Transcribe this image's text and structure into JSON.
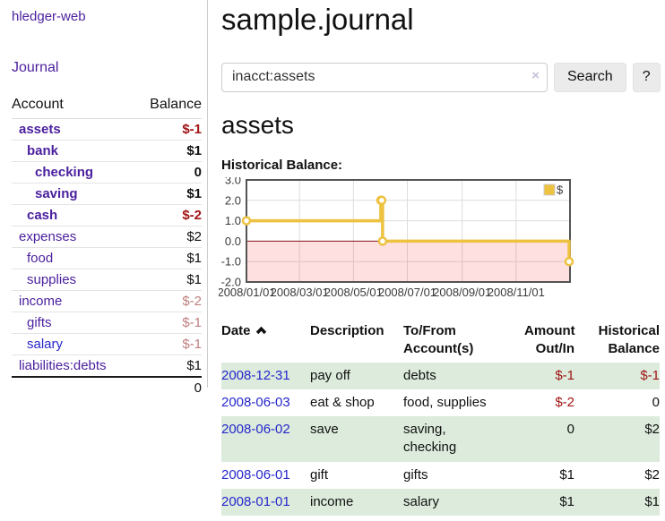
{
  "colors": {
    "link_purple": "#4a1f9e",
    "link_blue": "#2727cc",
    "negative_dark": "#a01414",
    "negative_rosy": "#bf7e7e",
    "row_green": "#dcebdc",
    "zero_line": "#8b1a1a",
    "negative_fill": "rgba(255,0,0,0.12)",
    "grid_line": "#dddddd",
    "plot_border": "#545454",
    "tick_label": "#3a3a3a"
  },
  "sidebar": {
    "brand": "hledger-web",
    "journal_label": "Journal",
    "table": {
      "account_header": "Account",
      "balance_header": "Balance",
      "rows": [
        {
          "name": "assets",
          "depth": 1,
          "bold": true,
          "balance": "$-1",
          "neg": "dark"
        },
        {
          "name": "bank",
          "depth": 2,
          "bold": true,
          "balance": "$1"
        },
        {
          "name": "checking",
          "depth": 3,
          "bold": true,
          "balance": "0"
        },
        {
          "name": "saving",
          "depth": 3,
          "bold": true,
          "balance": "$1"
        },
        {
          "name": "cash",
          "depth": 2,
          "bold": true,
          "balance": "$-2",
          "neg": "dark"
        },
        {
          "name": "expenses",
          "depth": 1,
          "bold": false,
          "balance": "$2"
        },
        {
          "name": "food",
          "depth": 2,
          "bold": false,
          "balance": "$1"
        },
        {
          "name": "supplies",
          "depth": 2,
          "bold": false,
          "balance": "$1"
        },
        {
          "name": "income",
          "depth": 1,
          "bold": false,
          "balance": "$-2",
          "neg": "rosy"
        },
        {
          "name": "gifts",
          "depth": 2,
          "bold": false,
          "balance": "$-1",
          "neg": "rosy"
        },
        {
          "name": "salary",
          "depth": 2,
          "bold": false,
          "balance": "$-1",
          "neg": "rosy",
          "blue_link": true
        },
        {
          "name": "liabilities:debts",
          "depth": 1,
          "bold": false,
          "balance": "$1"
        }
      ],
      "total": "0"
    }
  },
  "main": {
    "title": "sample.journal",
    "search": {
      "value": "inacct:assets",
      "clear_icon": "×",
      "button_label": "Search",
      "help_label": "?"
    },
    "account_heading": "assets",
    "chart_title": "Historical Balance:"
  },
  "chart_data": {
    "type": "line",
    "step": true,
    "title": "Historical Balance:",
    "series": [
      {
        "name": "$",
        "color": "#edc240",
        "points": [
          [
            "2008-01-01",
            1
          ],
          [
            "2008-06-01",
            2
          ],
          [
            "2008-06-02",
            2
          ],
          [
            "2008-06-03",
            0
          ],
          [
            "2008-12-31",
            -1
          ]
        ]
      }
    ],
    "x_range": [
      "2008-01-01",
      "2009-01-01"
    ],
    "ylim": [
      -2,
      3
    ],
    "y_ticks": [
      {
        "value": 3,
        "label": "3.0"
      },
      {
        "value": 2,
        "label": "2.0"
      },
      {
        "value": 1,
        "label": "1.0"
      },
      {
        "value": 0,
        "label": "0.0"
      },
      {
        "value": -1,
        "label": "-1.0"
      },
      {
        "value": -2,
        "label": "-2.0"
      }
    ],
    "x_ticks": [
      {
        "date": "2008-01-01",
        "label": "2008/01/01"
      },
      {
        "date": "2008-03-01",
        "label": "2008/03/01"
      },
      {
        "date": "2008-05-01",
        "label": "2008/05/01"
      },
      {
        "date": "2008-07-01",
        "label": "2008/07/01"
      },
      {
        "date": "2008-09-01",
        "label": "2008/09/01"
      },
      {
        "date": "2008-11-01",
        "label": "2008/11/01"
      }
    ],
    "grid": true,
    "legend_position": "top-right",
    "negative_region": true,
    "zero_line": true
  },
  "transactions": {
    "headers": {
      "date": "Date",
      "description": "Description",
      "accounts": "To/From Account(s)",
      "amount": "Amount Out/In",
      "balance": "Historical Balance"
    },
    "rows": [
      {
        "date": "2008-12-31",
        "description": "pay off",
        "accounts": "debts",
        "amount": "$-1",
        "amount_neg": true,
        "balance": "$-1",
        "balance_neg": true
      },
      {
        "date": "2008-06-03",
        "description": "eat & shop",
        "accounts": "food, supplies",
        "amount": "$-2",
        "amount_neg": true,
        "balance": "0",
        "balance_neg": false
      },
      {
        "date": "2008-06-02",
        "description": "save",
        "accounts": "saving,\nchecking",
        "amount": "0",
        "amount_neg": false,
        "balance": "$2",
        "balance_neg": false
      },
      {
        "date": "2008-06-01",
        "description": "gift",
        "accounts": "gifts",
        "amount": "$1",
        "amount_neg": false,
        "balance": "$2",
        "balance_neg": false
      },
      {
        "date": "2008-01-01",
        "description": "income",
        "accounts": "salary",
        "amount": "$1",
        "amount_neg": false,
        "balance": "$1",
        "balance_neg": false
      }
    ]
  }
}
